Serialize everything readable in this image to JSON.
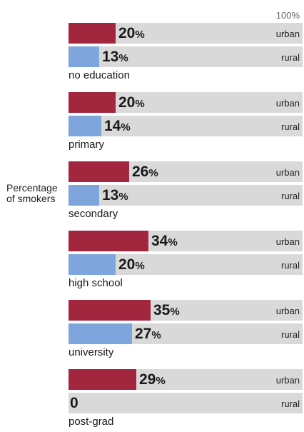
{
  "chart_data": {
    "type": "bar",
    "orientation": "horizontal",
    "title": "",
    "ylabel": "Percentage of smokers",
    "max_label": "100%",
    "xlim": [
      0,
      100
    ],
    "grid": false,
    "categories": [
      "no education",
      "primary",
      "secondary",
      "high school",
      "university",
      "post-grad"
    ],
    "series": [
      {
        "name": "urban",
        "color": "#a3263f",
        "values": [
          20,
          20,
          26,
          34,
          35,
          29
        ]
      },
      {
        "name": "rural",
        "color": "#7ea6dc",
        "values": [
          13,
          14,
          13,
          20,
          27,
          0
        ]
      }
    ],
    "track_color": "#d9d9d9"
  }
}
